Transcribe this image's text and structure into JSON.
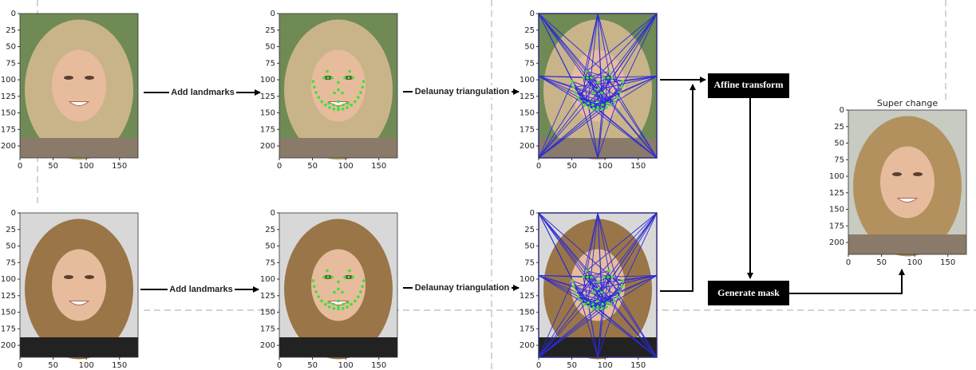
{
  "axes": {
    "xlim": [
      0,
      178
    ],
    "ylim": [
      0,
      218
    ],
    "xticks": [
      0,
      50,
      100,
      150
    ],
    "yticks": [
      0,
      25,
      50,
      75,
      100,
      125,
      150,
      175,
      200
    ]
  },
  "steps": {
    "landmarks": "Add landmarks",
    "triangulation": "Delaunay triangulation",
    "affine": "Affine transform",
    "mask": "Generate mask"
  },
  "result": {
    "title": "Super change"
  }
}
